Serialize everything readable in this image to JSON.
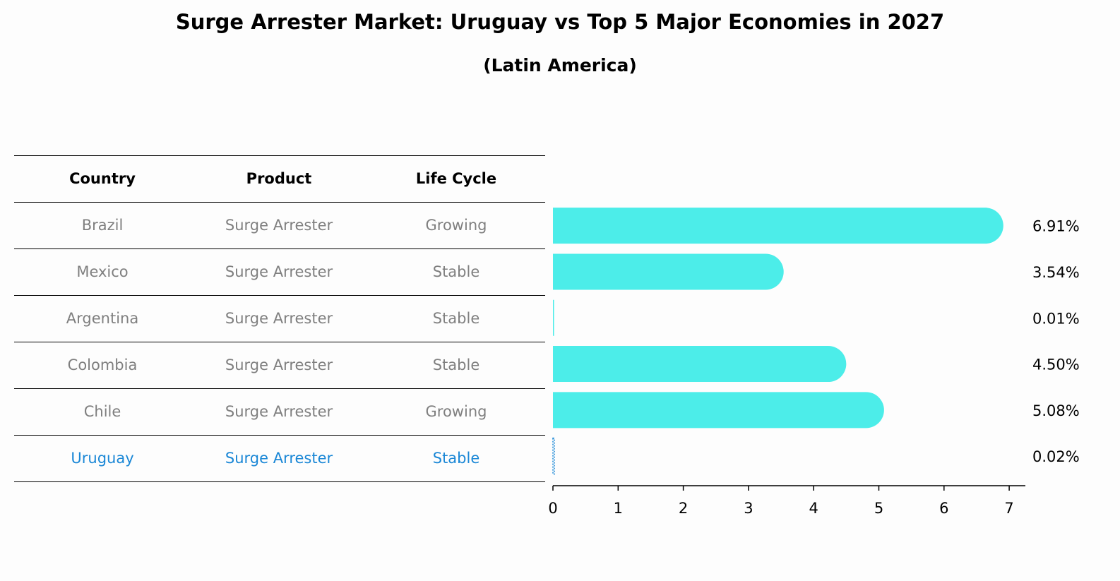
{
  "title": "Surge Arrester Market: Uruguay vs Top 5 Major Economies in 2027",
  "subtitle": "(Latin America)",
  "colors": {
    "bar": "#4cede9",
    "highlight": "#1a87d6",
    "muted_text": "#7f7f7f",
    "rule": "#000000"
  },
  "table": {
    "headers": [
      "Country",
      "Product",
      "Life Cycle"
    ],
    "rows": [
      {
        "country": "Brazil",
        "product": "Surge Arrester",
        "life_cycle": "Growing",
        "highlight": false
      },
      {
        "country": "Mexico",
        "product": "Surge Arrester",
        "life_cycle": "Stable",
        "highlight": false
      },
      {
        "country": "Argentina",
        "product": "Surge Arrester",
        "life_cycle": "Stable",
        "highlight": false
      },
      {
        "country": "Colombia",
        "product": "Surge Arrester",
        "life_cycle": "Stable",
        "highlight": false
      },
      {
        "country": "Chile",
        "product": "Surge Arrester",
        "life_cycle": "Growing",
        "highlight": false
      },
      {
        "country": "Uruguay",
        "product": "Surge Arrester",
        "life_cycle": "Stable",
        "highlight": true
      }
    ]
  },
  "chart_data": {
    "type": "bar",
    "orientation": "horizontal",
    "categories": [
      "Brazil",
      "Mexico",
      "Argentina",
      "Colombia",
      "Chile",
      "Uruguay"
    ],
    "values": [
      6.91,
      3.54,
      0.01,
      4.5,
      5.08,
      0.02
    ],
    "value_labels": [
      "6.91%",
      "3.54%",
      "0.01%",
      "4.50%",
      "5.08%",
      "0.02%"
    ],
    "highlight_category": "Uruguay",
    "xlim": [
      0,
      7.3
    ],
    "xticks": [
      0,
      1,
      2,
      3,
      4,
      5,
      6,
      7
    ],
    "grid": false,
    "legend": "none"
  }
}
